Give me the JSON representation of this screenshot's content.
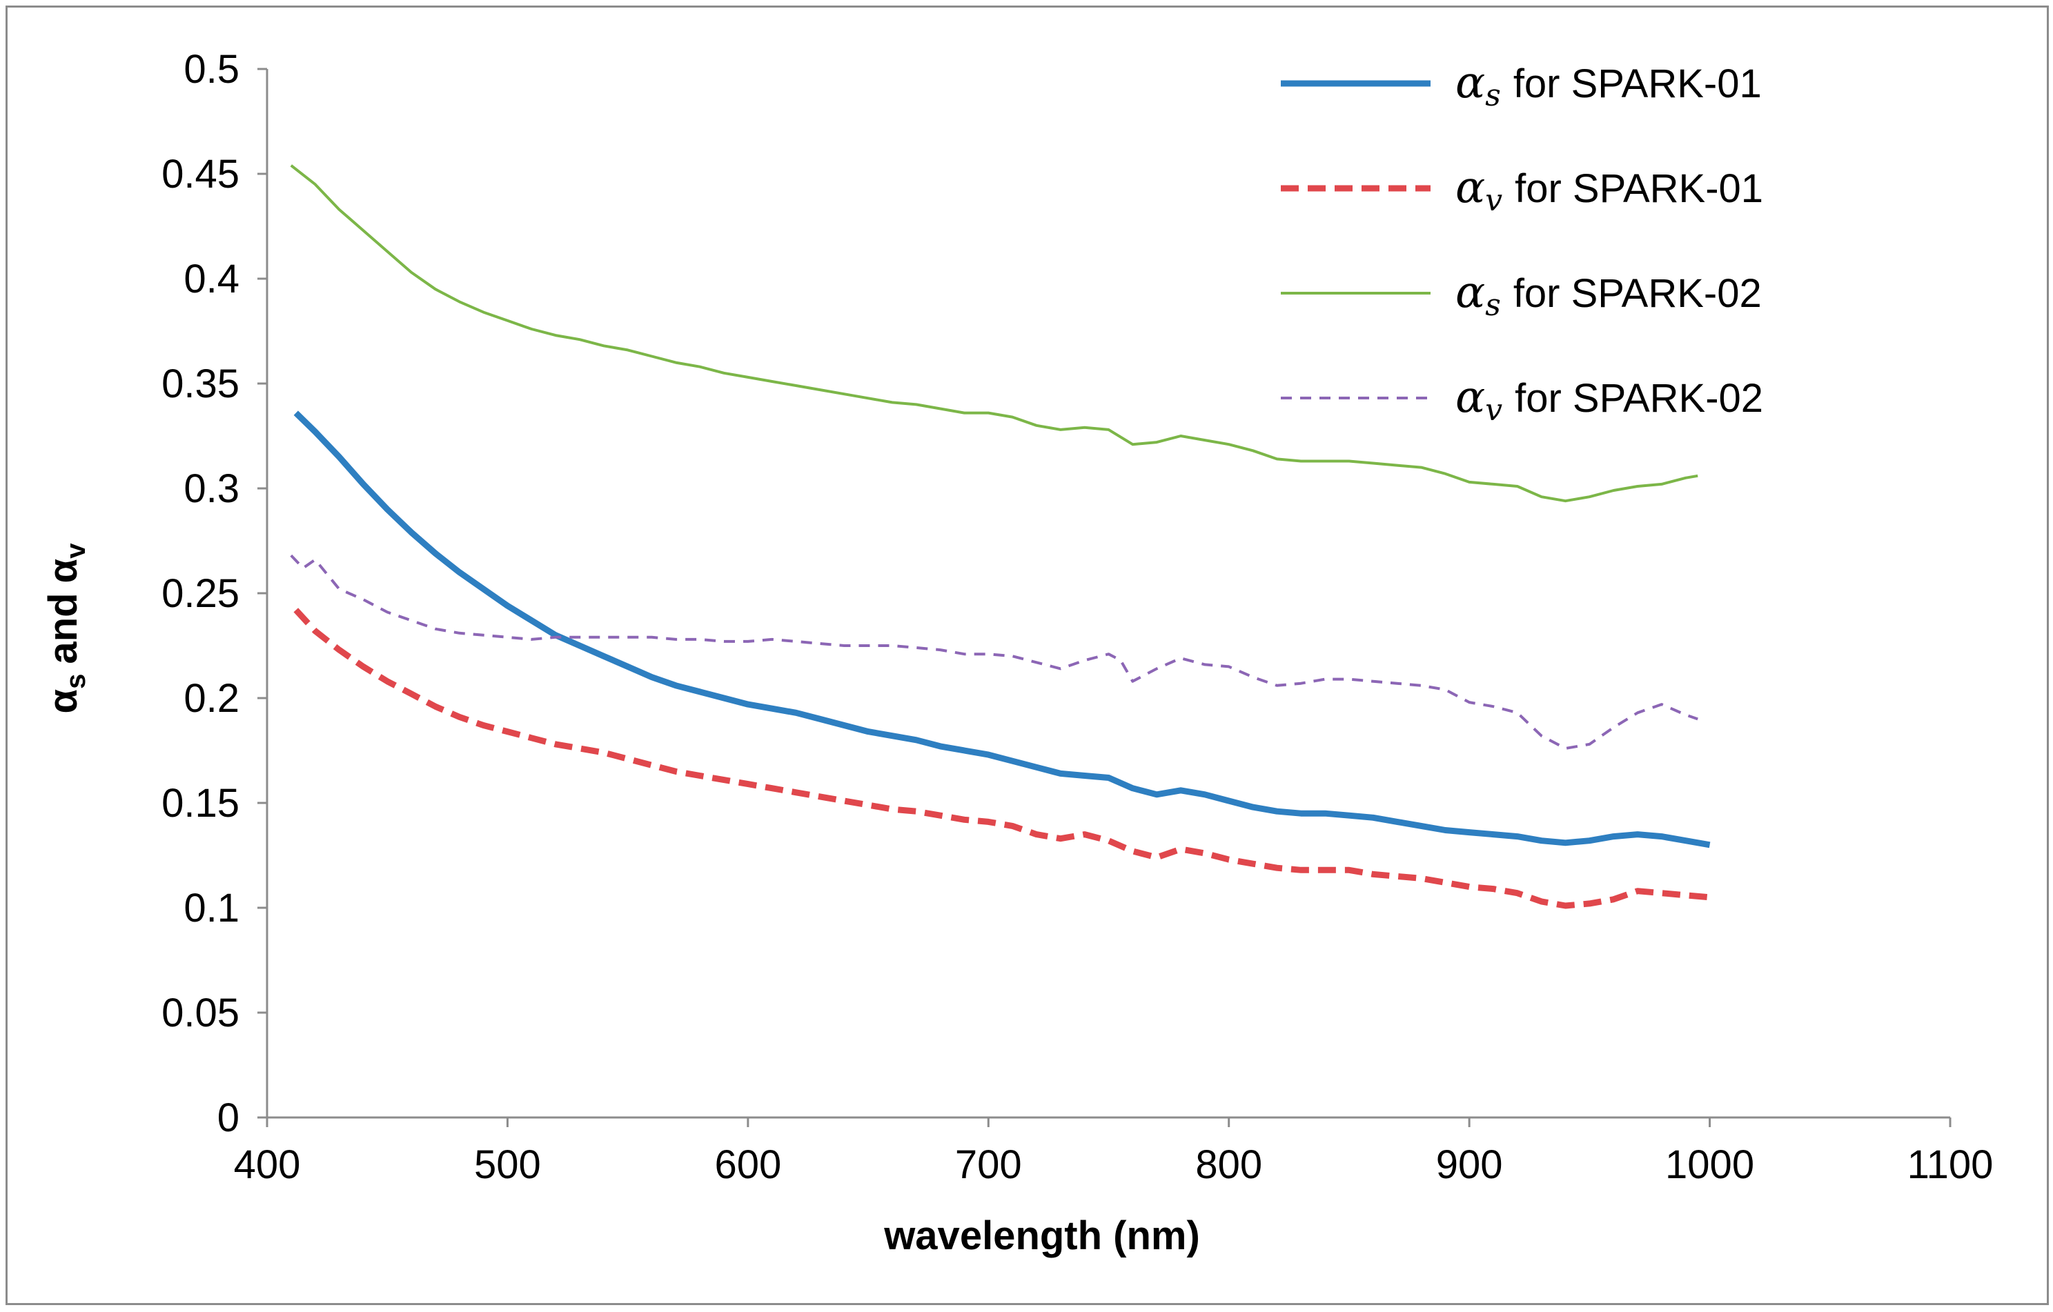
{
  "chart_data": {
    "type": "line",
    "title": "",
    "xlabel": "wavelength (nm)",
    "ylabel": {
      "symbol": "α",
      "sub1": "s",
      "and": "and",
      "sub2": "v"
    },
    "xlim": [
      400,
      1100
    ],
    "ylim": [
      0,
      0.5
    ],
    "xticks": [
      "400",
      "500",
      "600",
      "700",
      "800",
      "900",
      "1000",
      "1100"
    ],
    "yticks": [
      "0",
      "0.05",
      "0.1",
      "0.15",
      "0.2",
      "0.25",
      "0.3",
      "0.35",
      "0.4",
      "0.45",
      "0.5"
    ],
    "grid": false,
    "legend": "top-right",
    "series": [
      {
        "name": "αs for SPARK-01",
        "symbol": "α",
        "sub": "s",
        "suffix": "for SPARK-01",
        "color": "#2e7fc1",
        "style": "solid-thick",
        "x": [
          412,
          420,
          430,
          440,
          450,
          460,
          470,
          480,
          490,
          500,
          510,
          520,
          530,
          540,
          550,
          560,
          570,
          580,
          590,
          600,
          610,
          620,
          630,
          640,
          650,
          660,
          670,
          680,
          690,
          700,
          710,
          720,
          730,
          740,
          750,
          760,
          770,
          780,
          790,
          800,
          810,
          820,
          830,
          840,
          850,
          860,
          870,
          880,
          890,
          900,
          910,
          920,
          930,
          940,
          950,
          960,
          970,
          980,
          990,
          1000
        ],
        "y": [
          0.336,
          0.327,
          0.315,
          0.302,
          0.29,
          0.279,
          0.269,
          0.26,
          0.252,
          0.244,
          0.237,
          0.23,
          0.225,
          0.22,
          0.215,
          0.21,
          0.206,
          0.203,
          0.2,
          0.197,
          0.195,
          0.193,
          0.19,
          0.187,
          0.184,
          0.182,
          0.18,
          0.177,
          0.175,
          0.173,
          0.17,
          0.167,
          0.164,
          0.163,
          0.162,
          0.157,
          0.154,
          0.156,
          0.154,
          0.151,
          0.148,
          0.146,
          0.145,
          0.145,
          0.144,
          0.143,
          0.141,
          0.139,
          0.137,
          0.136,
          0.135,
          0.134,
          0.132,
          0.131,
          0.132,
          0.134,
          0.135,
          0.134,
          0.132,
          0.13
        ]
      },
      {
        "name": "αv for SPARK-01",
        "symbol": "α",
        "sub": "v",
        "suffix": "for SPARK-01",
        "color": "#e0474c",
        "style": "dashed-thick",
        "x": [
          412,
          420,
          430,
          440,
          450,
          460,
          470,
          480,
          490,
          500,
          510,
          520,
          530,
          540,
          550,
          560,
          570,
          580,
          590,
          600,
          610,
          620,
          630,
          640,
          650,
          660,
          670,
          680,
          690,
          700,
          710,
          720,
          730,
          740,
          750,
          760,
          770,
          780,
          790,
          800,
          810,
          820,
          830,
          840,
          850,
          860,
          870,
          880,
          890,
          900,
          910,
          920,
          930,
          940,
          950,
          960,
          970,
          980,
          990,
          1000
        ],
        "y": [
          0.242,
          0.232,
          0.223,
          0.215,
          0.208,
          0.202,
          0.196,
          0.191,
          0.187,
          0.184,
          0.181,
          0.178,
          0.176,
          0.174,
          0.171,
          0.168,
          0.165,
          0.163,
          0.161,
          0.159,
          0.157,
          0.155,
          0.153,
          0.151,
          0.149,
          0.147,
          0.146,
          0.144,
          0.142,
          0.141,
          0.139,
          0.135,
          0.133,
          0.135,
          0.132,
          0.127,
          0.124,
          0.128,
          0.126,
          0.123,
          0.121,
          0.119,
          0.118,
          0.118,
          0.118,
          0.116,
          0.115,
          0.114,
          0.112,
          0.11,
          0.109,
          0.107,
          0.103,
          0.101,
          0.102,
          0.104,
          0.108,
          0.107,
          0.106,
          0.105
        ]
      },
      {
        "name": "αs for SPARK-02",
        "symbol": "α",
        "sub": "s",
        "suffix": "for SPARK-02",
        "color": "#7cb648",
        "style": "solid-thin",
        "x": [
          410,
          420,
          430,
          440,
          450,
          460,
          470,
          480,
          490,
          500,
          510,
          520,
          530,
          540,
          550,
          560,
          570,
          580,
          590,
          600,
          610,
          620,
          630,
          640,
          650,
          660,
          670,
          680,
          690,
          700,
          710,
          720,
          730,
          740,
          750,
          760,
          770,
          780,
          790,
          800,
          810,
          820,
          830,
          840,
          850,
          860,
          870,
          880,
          890,
          900,
          910,
          920,
          930,
          940,
          950,
          960,
          970,
          980,
          990,
          995
        ],
        "y": [
          0.454,
          0.445,
          0.433,
          0.423,
          0.413,
          0.403,
          0.395,
          0.389,
          0.384,
          0.38,
          0.376,
          0.373,
          0.371,
          0.368,
          0.366,
          0.363,
          0.36,
          0.358,
          0.355,
          0.353,
          0.351,
          0.349,
          0.347,
          0.345,
          0.343,
          0.341,
          0.34,
          0.338,
          0.336,
          0.336,
          0.334,
          0.33,
          0.328,
          0.329,
          0.328,
          0.321,
          0.322,
          0.325,
          0.323,
          0.321,
          0.318,
          0.314,
          0.313,
          0.313,
          0.313,
          0.312,
          0.311,
          0.31,
          0.307,
          0.303,
          0.302,
          0.301,
          0.296,
          0.294,
          0.296,
          0.299,
          0.301,
          0.302,
          0.305,
          0.306
        ]
      },
      {
        "name": "αv for SPARK-02",
        "symbol": "α",
        "sub": "v",
        "suffix": "for SPARK-02",
        "color": "#8c66b5",
        "style": "dashed-thin",
        "x": [
          410,
          415,
          420,
          425,
          430,
          440,
          450,
          460,
          470,
          480,
          490,
          500,
          510,
          520,
          530,
          540,
          550,
          560,
          570,
          580,
          590,
          600,
          610,
          620,
          630,
          640,
          650,
          660,
          670,
          680,
          690,
          700,
          710,
          720,
          730,
          740,
          750,
          755,
          760,
          770,
          780,
          790,
          800,
          810,
          820,
          830,
          840,
          850,
          860,
          870,
          880,
          890,
          900,
          910,
          920,
          930,
          940,
          950,
          960,
          970,
          980,
          990,
          995
        ],
        "y": [
          0.268,
          0.262,
          0.266,
          0.259,
          0.252,
          0.247,
          0.241,
          0.237,
          0.233,
          0.231,
          0.23,
          0.229,
          0.228,
          0.229,
          0.229,
          0.229,
          0.229,
          0.229,
          0.228,
          0.228,
          0.227,
          0.227,
          0.228,
          0.227,
          0.226,
          0.225,
          0.225,
          0.225,
          0.224,
          0.223,
          0.221,
          0.221,
          0.22,
          0.217,
          0.214,
          0.218,
          0.221,
          0.218,
          0.208,
          0.214,
          0.219,
          0.216,
          0.215,
          0.21,
          0.206,
          0.207,
          0.209,
          0.209,
          0.208,
          0.207,
          0.206,
          0.204,
          0.198,
          0.196,
          0.193,
          0.182,
          0.176,
          0.178,
          0.186,
          0.193,
          0.197,
          0.192,
          0.19
        ]
      }
    ]
  }
}
